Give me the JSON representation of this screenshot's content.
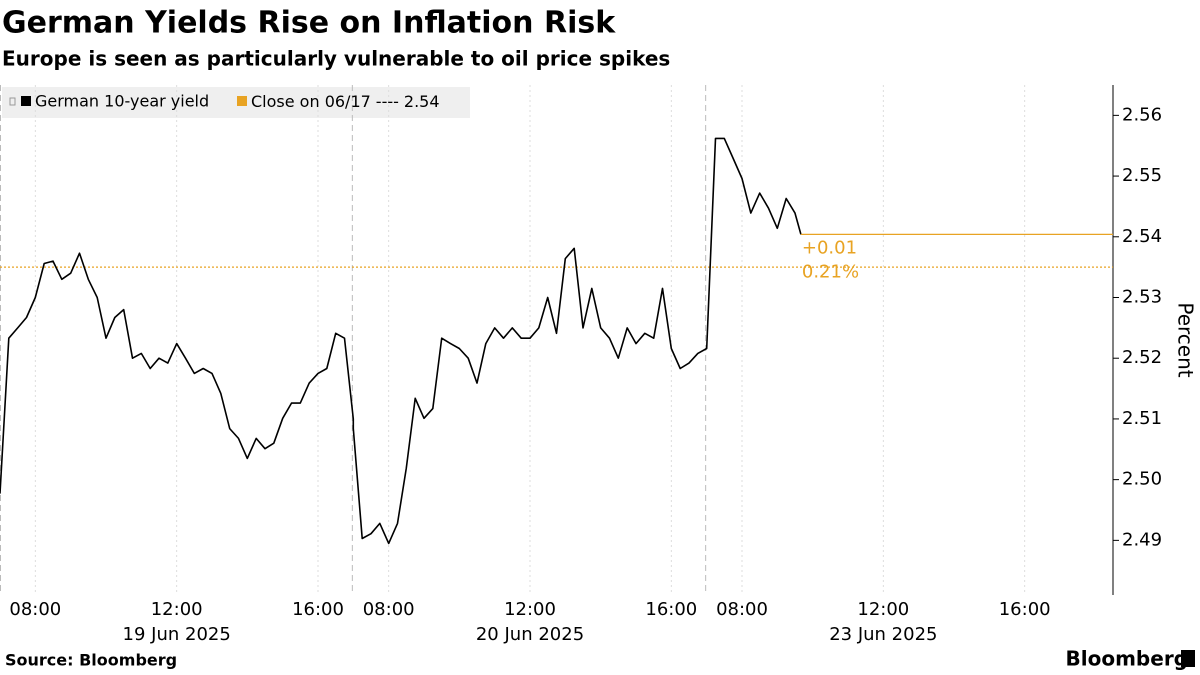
{
  "chart_data": {
    "type": "line",
    "title": "German Yields Rise on Inflation Risk",
    "subtitle": "Europe is seen as particularly vulnerable to oil price spikes",
    "y_label": "Percent",
    "source": "Source: Bloomberg",
    "brand": "Bloomberg",
    "x": [
      "19 Jun 2025 07:00",
      "19 Jun 2025 07:15",
      "19 Jun 2025 07:30",
      "19 Jun 2025 07:45",
      "19 Jun 2025 08:00",
      "19 Jun 2025 08:15",
      "19 Jun 2025 08:30",
      "19 Jun 2025 08:45",
      "19 Jun 2025 09:00",
      "19 Jun 2025 09:15",
      "19 Jun 2025 09:30",
      "19 Jun 2025 09:45",
      "19 Jun 2025 10:00",
      "19 Jun 2025 10:15",
      "19 Jun 2025 10:30",
      "19 Jun 2025 10:45",
      "19 Jun 2025 11:00",
      "19 Jun 2025 11:15",
      "19 Jun 2025 11:30",
      "19 Jun 2025 11:45",
      "19 Jun 2025 12:00",
      "19 Jun 2025 12:15",
      "19 Jun 2025 12:30",
      "19 Jun 2025 12:45",
      "19 Jun 2025 13:00",
      "19 Jun 2025 13:15",
      "19 Jun 2025 13:30",
      "19 Jun 2025 13:45",
      "19 Jun 2025 14:00",
      "19 Jun 2025 14:15",
      "19 Jun 2025 14:30",
      "19 Jun 2025 14:45",
      "19 Jun 2025 15:00",
      "19 Jun 2025 15:15",
      "19 Jun 2025 15:30",
      "19 Jun 2025 15:45",
      "19 Jun 2025 16:00",
      "19 Jun 2025 16:15",
      "19 Jun 2025 16:30",
      "19 Jun 2025 16:45",
      "19 Jun 2025 17:00",
      "20 Jun 2025 07:00",
      "20 Jun 2025 07:15",
      "20 Jun 2025 07:30",
      "20 Jun 2025 07:45",
      "20 Jun 2025 08:00",
      "20 Jun 2025 08:15",
      "20 Jun 2025 08:30",
      "20 Jun 2025 08:45",
      "20 Jun 2025 09:00",
      "20 Jun 2025 09:15",
      "20 Jun 2025 09:30",
      "20 Jun 2025 09:45",
      "20 Jun 2025 10:00",
      "20 Jun 2025 10:15",
      "20 Jun 2025 10:30",
      "20 Jun 2025 10:45",
      "20 Jun 2025 11:00",
      "20 Jun 2025 11:15",
      "20 Jun 2025 11:30",
      "20 Jun 2025 11:45",
      "20 Jun 2025 12:00",
      "20 Jun 2025 12:15",
      "20 Jun 2025 12:30",
      "20 Jun 2025 12:45",
      "20 Jun 2025 13:00",
      "20 Jun 2025 13:15",
      "20 Jun 2025 13:30",
      "20 Jun 2025 13:45",
      "20 Jun 2025 14:00",
      "20 Jun 2025 14:15",
      "20 Jun 2025 14:30",
      "20 Jun 2025 14:45",
      "20 Jun 2025 15:00",
      "20 Jun 2025 15:15",
      "20 Jun 2025 15:30",
      "20 Jun 2025 15:45",
      "20 Jun 2025 16:00",
      "20 Jun 2025 16:15",
      "20 Jun 2025 16:30",
      "20 Jun 2025 16:45",
      "20 Jun 2025 17:00",
      "23 Jun 2025 07:00",
      "23 Jun 2025 07:15",
      "23 Jun 2025 07:30",
      "23 Jun 2025 07:45",
      "23 Jun 2025 08:00",
      "23 Jun 2025 08:15",
      "23 Jun 2025 08:30",
      "23 Jun 2025 08:45",
      "23 Jun 2025 09:00",
      "23 Jun 2025 09:15",
      "23 Jun 2025 09:30",
      "23 Jun 2025 09:40"
    ],
    "series": [
      {
        "name": "German 10-year yield",
        "color": "#000000",
        "values": [
          2.4977,
          2.5233,
          2.525,
          2.5267,
          2.53,
          2.5356,
          2.536,
          2.533,
          2.534,
          2.5373,
          2.533,
          2.53,
          2.5233,
          2.5267,
          2.528,
          2.52,
          2.5208,
          2.5183,
          2.52,
          2.5192,
          2.5224,
          2.52,
          2.5175,
          2.5183,
          2.5175,
          2.5142,
          2.5084,
          2.5068,
          2.5035,
          2.5068,
          2.5051,
          2.506,
          2.5101,
          2.5126,
          2.5126,
          2.5159,
          2.5175,
          2.5183,
          2.5241,
          2.5233,
          2.51,
          2.5084,
          2.4903,
          2.4911,
          2.4928,
          2.4895,
          2.4928,
          2.5019,
          2.5134,
          2.5101,
          2.5117,
          2.5233,
          2.5224,
          2.5216,
          2.52,
          2.5159,
          2.5224,
          2.525,
          2.5233,
          2.525,
          2.5233,
          2.5233,
          2.525,
          2.53,
          2.5241,
          2.5364,
          2.5381,
          2.525,
          2.5315,
          2.525,
          2.5233,
          2.52,
          2.525,
          2.5224,
          2.5241,
          2.5233,
          2.5315,
          2.5216,
          2.5183,
          2.5192,
          2.5208,
          2.5216,
          2.5216,
          2.5562,
          2.5562,
          2.5529,
          2.5496,
          2.5439,
          2.5472,
          2.5447,
          2.5414,
          2.5463,
          2.5439,
          2.5404
        ]
      }
    ],
    "reference_line": {
      "name": "Close on 06/17",
      "separator": "----",
      "value": 2.535,
      "value_label": "2.54",
      "color": "#e8a323"
    },
    "change_labels": [
      "+0.01",
      "0.21%"
    ],
    "xlim": [
      "19 Jun 2025 07:00",
      "23 Jun 2025 18:30"
    ],
    "xticks": [
      {
        "value": "19 Jun 2025 08:00",
        "label": "08:00"
      },
      {
        "value": "19 Jun 2025 12:00",
        "label": "12:00"
      },
      {
        "value": "19 Jun 2025 16:00",
        "label": "16:00"
      },
      {
        "value": "20 Jun 2025 08:00",
        "label": "08:00"
      },
      {
        "value": "20 Jun 2025 12:00",
        "label": "12:00"
      },
      {
        "value": "20 Jun 2025 16:00",
        "label": "16:00"
      },
      {
        "value": "23 Jun 2025 08:00",
        "label": "08:00"
      },
      {
        "value": "23 Jun 2025 12:00",
        "label": "12:00"
      },
      {
        "value": "23 Jun 2025 16:00",
        "label": "16:00"
      }
    ],
    "x_groups": [
      {
        "value": "19 Jun 2025 12:00",
        "label": "19 Jun 2025"
      },
      {
        "value": "20 Jun 2025 12:00",
        "label": "20 Jun 2025"
      },
      {
        "value": "23 Jun 2025 12:00",
        "label": "23 Jun 2025"
      }
    ],
    "ylim": [
      2.481,
      2.565
    ],
    "yticks": [
      2.49,
      {
        "value": 2.5,
        "label": "2.50"
      },
      2.51,
      2.52,
      2.53,
      2.54,
      2.55,
      2.56
    ],
    "grid": true
  }
}
